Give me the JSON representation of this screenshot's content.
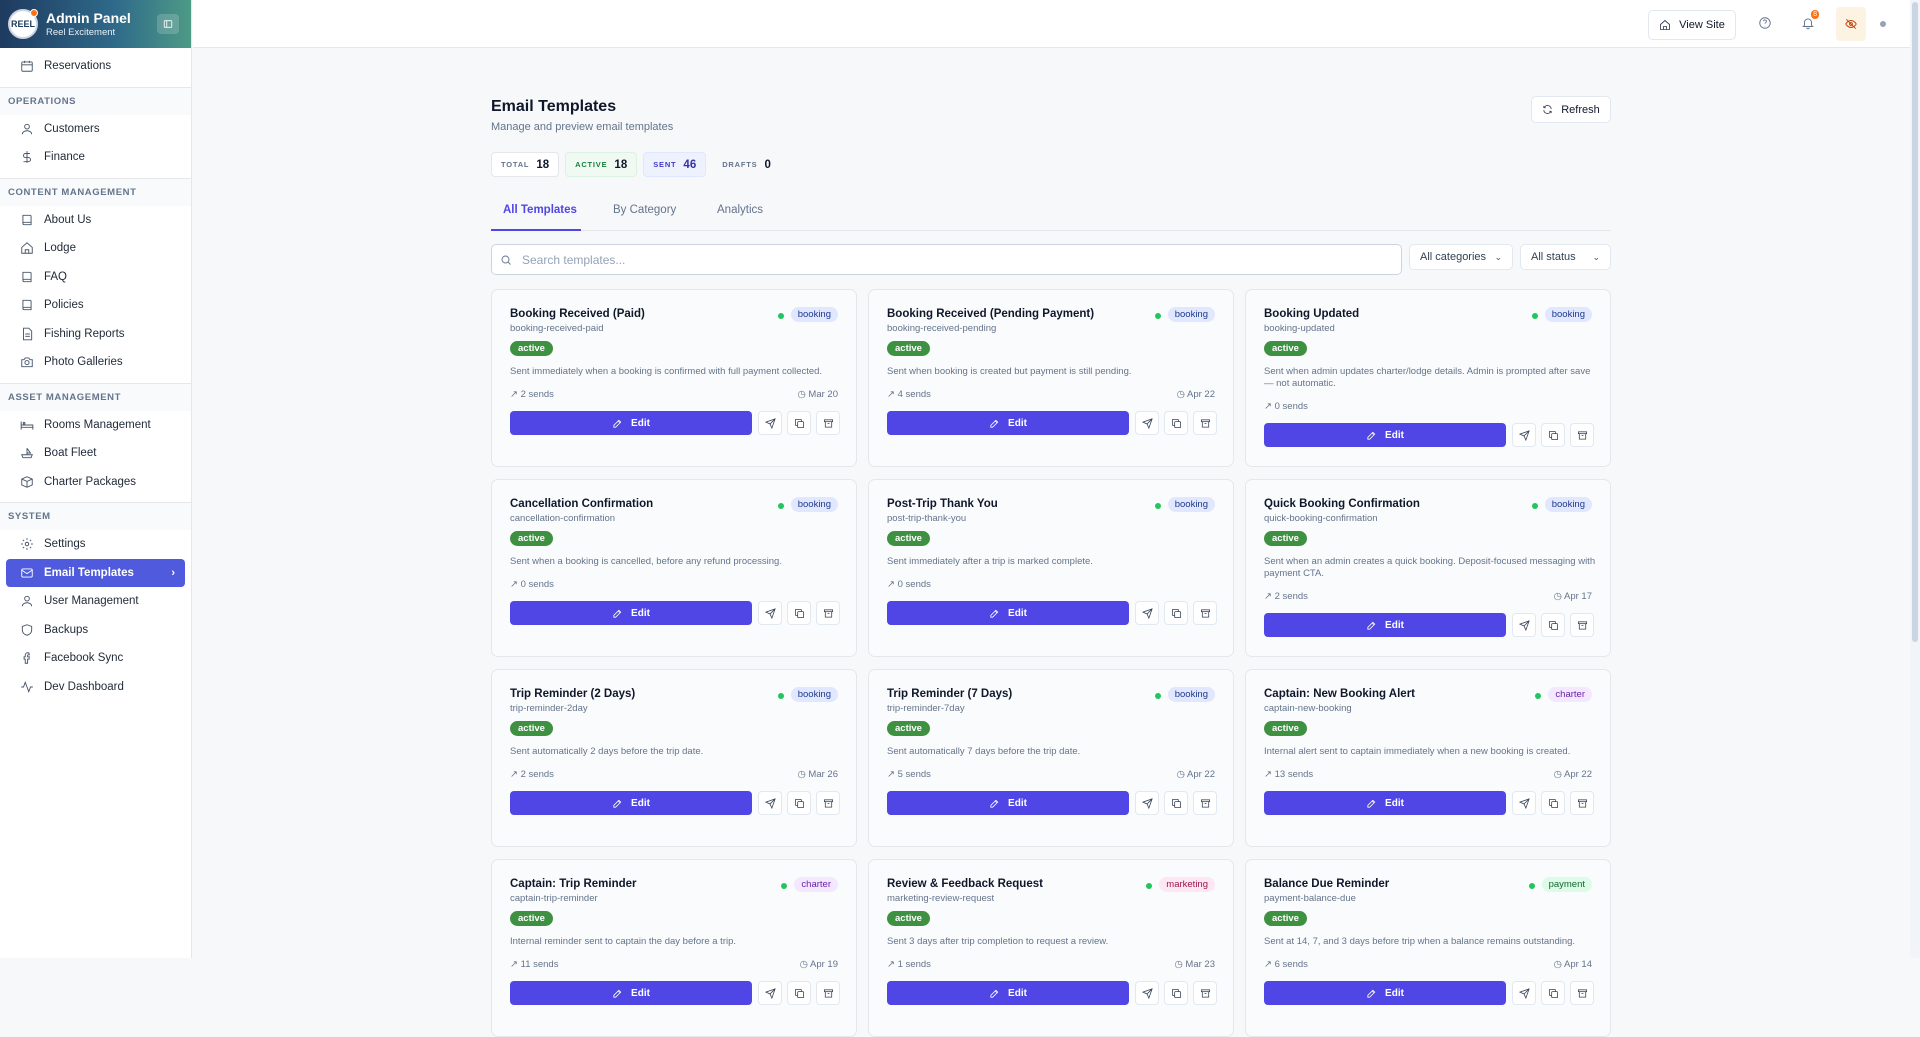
{
  "brand": {
    "title": "Admin Panel",
    "subtitle": "Reel Excitement",
    "logo_text": "REEL"
  },
  "nav": {
    "top": [
      {
        "label": "Reservations",
        "icon": "calendar-icon"
      }
    ],
    "sections": [
      {
        "title": "OPERATIONS",
        "items": [
          {
            "label": "Customers",
            "icon": "user-icon"
          },
          {
            "label": "Finance",
            "icon": "dollar-icon"
          }
        ]
      },
      {
        "title": "CONTENT MANAGEMENT",
        "items": [
          {
            "label": "About Us",
            "icon": "book-icon"
          },
          {
            "label": "Lodge",
            "icon": "home-icon"
          },
          {
            "label": "FAQ",
            "icon": "book-icon"
          },
          {
            "label": "Policies",
            "icon": "book-icon"
          },
          {
            "label": "Fishing Reports",
            "icon": "file-icon"
          },
          {
            "label": "Photo Galleries",
            "icon": "camera-icon"
          }
        ]
      },
      {
        "title": "ASSET MANAGEMENT",
        "items": [
          {
            "label": "Rooms Management",
            "icon": "bed-icon"
          },
          {
            "label": "Boat Fleet",
            "icon": "boat-icon"
          },
          {
            "label": "Charter Packages",
            "icon": "package-icon"
          }
        ]
      },
      {
        "title": "SYSTEM",
        "items": [
          {
            "label": "Settings",
            "icon": "gear-icon"
          },
          {
            "label": "Email Templates",
            "icon": "mail-icon",
            "active": true
          },
          {
            "label": "User Management",
            "icon": "user-icon"
          },
          {
            "label": "Backups",
            "icon": "shield-icon"
          },
          {
            "label": "Facebook Sync",
            "icon": "facebook-icon"
          },
          {
            "label": "Dev Dashboard",
            "icon": "activity-icon"
          }
        ]
      }
    ]
  },
  "topbar": {
    "view_site": "View Site",
    "notification_count": "8"
  },
  "page": {
    "title": "Email Templates",
    "subtitle": "Manage and preview email templates",
    "refresh": "Refresh",
    "stats": [
      {
        "key": "TOTAL",
        "value": "18"
      },
      {
        "key": "ACTIVE",
        "value": "18"
      },
      {
        "key": "SENT",
        "value": "46"
      },
      {
        "key": "DRAFTS",
        "value": "0"
      }
    ],
    "tabs": [
      "All Templates",
      "By Category",
      "Analytics"
    ],
    "search_placeholder": "Search templates...",
    "filter_category": "All categories",
    "filter_status": "All status",
    "edit_label": "Edit"
  },
  "templates": [
    {
      "name": "Booking Received (Paid)",
      "slug": "booking-received-paid",
      "category": "booking",
      "status": "active",
      "desc": "Sent immediately when a booking is confirmed with full payment collected.",
      "sends": "2 sends",
      "date": "Mar 20"
    },
    {
      "name": "Booking Received (Pending Payment)",
      "slug": "booking-received-pending",
      "category": "booking",
      "status": "active",
      "desc": "Sent when booking is created but payment is still pending.",
      "sends": "4 sends",
      "date": "Apr 22"
    },
    {
      "name": "Booking Updated",
      "slug": "booking-updated",
      "category": "booking",
      "status": "active",
      "desc": "Sent when admin updates charter/lodge details. Admin is prompted after save — not automatic.",
      "sends": "0 sends",
      "date": ""
    },
    {
      "name": "Cancellation Confirmation",
      "slug": "cancellation-confirmation",
      "category": "booking",
      "status": "active",
      "desc": "Sent when a booking is cancelled, before any refund processing.",
      "sends": "0 sends",
      "date": ""
    },
    {
      "name": "Post-Trip Thank You",
      "slug": "post-trip-thank-you",
      "category": "booking",
      "status": "active",
      "desc": "Sent immediately after a trip is marked complete.",
      "sends": "0 sends",
      "date": ""
    },
    {
      "name": "Quick Booking Confirmation",
      "slug": "quick-booking-confirmation",
      "category": "booking",
      "status": "active",
      "desc": "Sent when an admin creates a quick booking. Deposit-focused messaging with payment CTA.",
      "sends": "2 sends",
      "date": "Apr 17"
    },
    {
      "name": "Trip Reminder (2 Days)",
      "slug": "trip-reminder-2day",
      "category": "booking",
      "status": "active",
      "desc": "Sent automatically 2 days before the trip date.",
      "sends": "2 sends",
      "date": "Mar 26"
    },
    {
      "name": "Trip Reminder (7 Days)",
      "slug": "trip-reminder-7day",
      "category": "booking",
      "status": "active",
      "desc": "Sent automatically 7 days before the trip date.",
      "sends": "5 sends",
      "date": "Apr 22"
    },
    {
      "name": "Captain: New Booking Alert",
      "slug": "captain-new-booking",
      "category": "charter",
      "status": "active",
      "desc": "Internal alert sent to captain immediately when a new booking is created.",
      "sends": "13 sends",
      "date": "Apr 22"
    },
    {
      "name": "Captain: Trip Reminder",
      "slug": "captain-trip-reminder",
      "category": "charter",
      "status": "active",
      "desc": "Internal reminder sent to captain the day before a trip.",
      "sends": "11 sends",
      "date": "Apr 19"
    },
    {
      "name": "Review & Feedback Request",
      "slug": "marketing-review-request",
      "category": "marketing",
      "status": "active",
      "desc": "Sent 3 days after trip completion to request a review.",
      "sends": "1 sends",
      "date": "Mar 23"
    },
    {
      "name": "Balance Due Reminder",
      "slug": "payment-balance-due",
      "category": "payment",
      "status": "active",
      "desc": "Sent at 14, 7, and 3 days before trip when a balance remains outstanding.",
      "sends": "6 sends",
      "date": "Apr 14"
    }
  ]
}
